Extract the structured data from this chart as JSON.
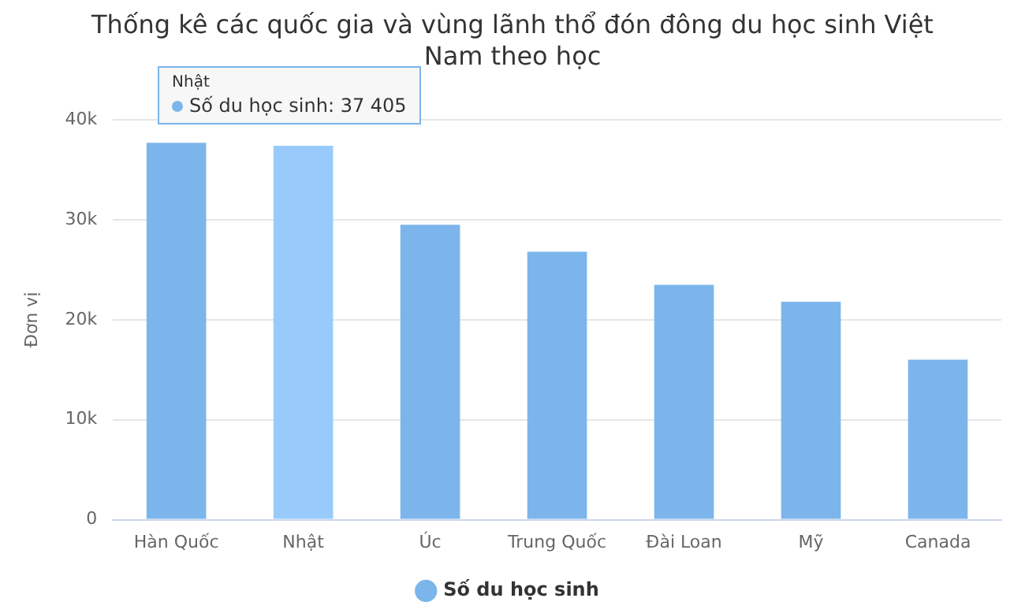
{
  "chart_data": {
    "type": "bar",
    "title": "Thống kê các quốc gia và vùng lãnh thổ đón đông du học sinh Việt Nam theo học",
    "ylabel": "Đơn vị",
    "categories": [
      "Hàn Quốc",
      "Nhật",
      "Úc",
      "Trung Quốc",
      "Đài Loan",
      "Mỹ",
      "Canada"
    ],
    "series": [
      {
        "name": "Số du học sinh",
        "color": "#7cb5ec",
        "colors": [
          "#7cb5ec",
          "#98cbfb",
          "#7cb5ec",
          "#7cb5ec",
          "#7cb5ec",
          "#7cb5ec",
          "#7cb5ec"
        ],
        "values": [
          37700,
          37405,
          29500,
          26800,
          23500,
          21800,
          16000
        ]
      }
    ],
    "ylim": [
      0,
      40000
    ],
    "yticks": [
      0,
      {
        "value": 10000,
        "label": "10k"
      },
      {
        "value": 20000,
        "label": "20k"
      },
      {
        "value": 30000,
        "label": "30k"
      },
      {
        "value": 40000,
        "label": "40k"
      }
    ],
    "grid": "y",
    "legend": "bottom",
    "marker": "circle",
    "annotations": [
      "Nhật",
      "Số du học sinh: 37 405"
    ]
  }
}
